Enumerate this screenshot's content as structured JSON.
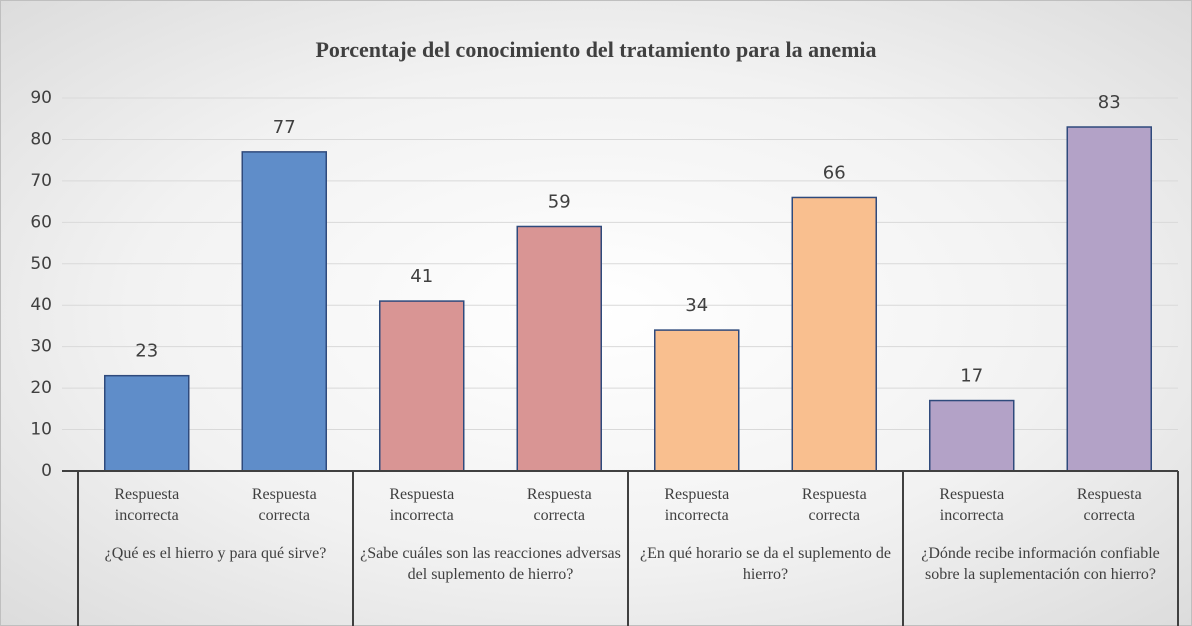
{
  "chart_data": {
    "type": "bar",
    "title": "Porcentaje del conocimiento del tratamiento para la anemia",
    "categories": [
      "Respuesta incorrecta",
      "Respuesta correcta",
      "Respuesta incorrecta",
      "Respuesta correcta",
      "Respuesta incorrecta",
      "Respuesta correcta",
      "Respuesta incorrecta",
      "Respuesta correcta"
    ],
    "groups": [
      "¿Qué es el hierro y para qué sirve?",
      "¿Sabe cuáles son las reacciones adversas del suplemento de hierro?",
      "¿En qué horario se da el suplemento de hierro?",
      "¿Dónde recibe información confiable sobre la suplementación con hierro?"
    ],
    "values": [
      23,
      77,
      41,
      59,
      34,
      66,
      17,
      83
    ],
    "colors": [
      "#5f8dc9",
      "#5f8dc9",
      "#d99594",
      "#d99594",
      "#f9bf8f",
      "#f9bf8f",
      "#b3a2c7",
      "#b3a2c7"
    ],
    "edgecolor": "#2f4a7c",
    "ylim": [
      0,
      90
    ],
    "yticks": [
      0,
      10,
      20,
      30,
      40,
      50,
      60,
      70,
      80,
      90
    ],
    "grid": true
  }
}
